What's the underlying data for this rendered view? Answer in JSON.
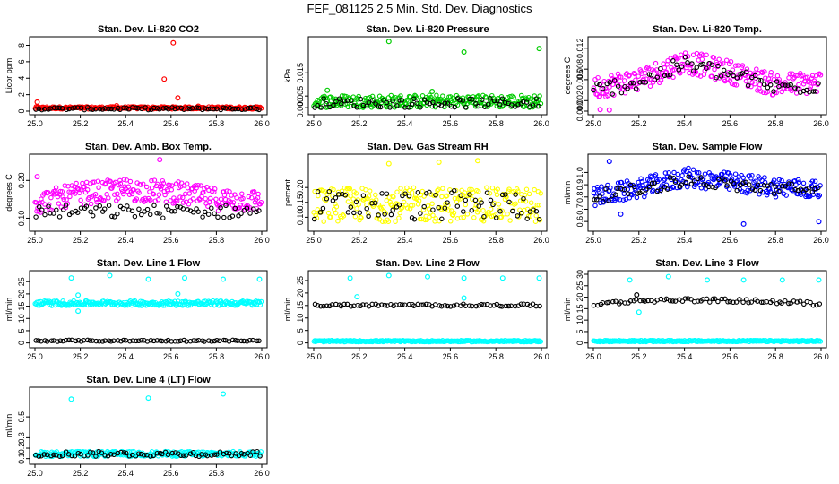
{
  "figure_title": "FEF_081125  2.5 Min. Std. Dev. Diagnostics",
  "chart_data": [
    {
      "type": "scatter",
      "title": "Stan. Dev. Li-820 CO2",
      "ylabel": "Licor ppm",
      "xlim": [
        25.0,
        26.0
      ],
      "ylim": [
        0,
        8.6
      ],
      "xticks": [
        "25.0",
        "25.2",
        "25.4",
        "25.6",
        "25.8",
        "26.0"
      ],
      "yticks": [
        0,
        2,
        4,
        6,
        8
      ],
      "ytick_labels": [
        "0",
        "2",
        "4",
        "6",
        "8"
      ],
      "series": [
        {
          "name": "red",
          "color": "#ff0000",
          "band": [
            0.25,
            0.55
          ],
          "outliers": [
            [
              25.01,
              1.1
            ],
            [
              25.57,
              3.9
            ],
            [
              25.61,
              8.3
            ],
            [
              25.63,
              1.6
            ],
            [
              25.36,
              0.65
            ],
            [
              25.72,
              0.6
            ]
          ]
        },
        {
          "name": "black",
          "color": "#000000",
          "band": [
            0.15,
            0.45
          ],
          "outliers": []
        }
      ]
    },
    {
      "type": "scatter",
      "title": "Stan. Dev. Li-820 Pressure",
      "ylabel": "kPa",
      "xlim": [
        25.0,
        26.0
      ],
      "ylim": [
        -0.0015,
        0.029
      ],
      "xticks": [
        "25.0",
        "25.2",
        "25.4",
        "25.6",
        "25.8",
        "26.0"
      ],
      "yticks": [
        0,
        0.005,
        0.015
      ],
      "ytick_labels": [
        "0.000",
        "0.005",
        "0.015"
      ],
      "series": [
        {
          "name": "green",
          "color": "#00cc00",
          "band": [
            0.0,
            0.0055
          ],
          "outliers": [
            [
              25.33,
              0.0285
            ],
            [
              25.66,
              0.024
            ],
            [
              25.99,
              0.0255
            ],
            [
              25.06,
              0.0075
            ],
            [
              25.52,
              0.007
            ]
          ]
        },
        {
          "name": "black",
          "color": "#000000",
          "band": [
            0.0,
            0.004
          ],
          "outliers": []
        }
      ]
    },
    {
      "type": "scatter",
      "title": "Stan. Dev. Li-820 Temp.",
      "ylabel": "degrees C",
      "xlim": [
        25.0,
        26.0
      ],
      "ylim": [
        0,
        0.0135
      ],
      "xticks": [
        "25.0",
        "25.2",
        "25.4",
        "25.6",
        "25.8",
        "26.0"
      ],
      "yticks": [
        0,
        0.002,
        0.006,
        0.008,
        0.012
      ],
      "ytick_labels": [
        "0.000",
        "0.002",
        "0.006",
        "0.008",
        "0.012"
      ],
      "series": [
        {
          "name": "magenta",
          "color": "#ff00ff",
          "trend": [
            [
              25.0,
              0.0045
            ],
            [
              25.2,
              0.006
            ],
            [
              25.4,
              0.0095
            ],
            [
              25.6,
              0.0075
            ],
            [
              25.8,
              0.005
            ],
            [
              26.0,
              0.0055
            ]
          ],
          "spread": 0.0022,
          "outliers": [
            [
              25.03,
              0.0003
            ],
            [
              25.07,
              0.0002
            ]
          ]
        },
        {
          "name": "black",
          "color": "#000000",
          "trend": [
            [
              25.0,
              0.004
            ],
            [
              25.2,
              0.0055
            ],
            [
              25.4,
              0.009
            ],
            [
              25.6,
              0.007
            ],
            [
              25.8,
              0.0045
            ],
            [
              26.0,
              0.005
            ]
          ],
          "spread": 0.0015,
          "outliers": []
        }
      ]
    },
    {
      "type": "scatter",
      "title": "Stan. Dev. Amb. Box Temp.",
      "ylabel": "degrees C",
      "xlim": [
        25.0,
        26.0
      ],
      "ylim": [
        0.075,
        0.26
      ],
      "xticks": [
        "25.0",
        "25.2",
        "25.4",
        "25.6",
        "25.8",
        "26.0"
      ],
      "yticks": [
        0.1,
        0.2
      ],
      "ytick_labels": [
        "0.10",
        "0.20"
      ],
      "series": [
        {
          "name": "magenta",
          "color": "#ff00ff",
          "trend": [
            [
              25.0,
              0.14
            ],
            [
              25.2,
              0.165
            ],
            [
              25.4,
              0.175
            ],
            [
              25.6,
              0.17
            ],
            [
              25.8,
              0.15
            ],
            [
              26.0,
              0.145
            ]
          ],
          "spread": 0.03,
          "outliers": [
            [
              25.01,
              0.21
            ],
            [
              25.55,
              0.255
            ]
          ]
        },
        {
          "name": "black",
          "color": "#000000",
          "band": [
            0.1,
            0.135
          ],
          "outliers": []
        }
      ]
    },
    {
      "type": "scatter",
      "title": "Stan. Dev. Gas Stream RH",
      "ylabel": "percent",
      "xlim": [
        25.0,
        26.0
      ],
      "ylim": [
        0.065,
        0.3
      ],
      "xticks": [
        "25.0",
        "25.2",
        "25.4",
        "25.6",
        "25.8",
        "26.0"
      ],
      "yticks": [
        0.1,
        0.15,
        0.2
      ],
      "ytick_labels": [
        "0.10",
        "0.15",
        "0.20"
      ],
      "series": [
        {
          "name": "yellow",
          "color": "#ffff00",
          "band": [
            0.085,
            0.2
          ],
          "outliers": [
            [
              25.55,
              0.285
            ],
            [
              25.72,
              0.29
            ],
            [
              25.33,
              0.28
            ]
          ]
        },
        {
          "name": "black",
          "color": "#000000",
          "band": [
            0.09,
            0.19
          ],
          "outliers": []
        }
      ]
    },
    {
      "type": "scatter",
      "title": "Stan. Dev. Sample Flow",
      "ylabel": "ml/min",
      "xlim": [
        25.0,
        26.0
      ],
      "ylim": [
        0.55,
        1.12
      ],
      "xticks": [
        "25.0",
        "25.2",
        "25.4",
        "25.6",
        "25.8",
        "26.0"
      ],
      "yticks": [
        0.6,
        0.7,
        0.8,
        0.9,
        1.0
      ],
      "ytick_labels": [
        "0.6",
        "0.7",
        "0.8",
        "0.9",
        "1.0"
      ],
      "series": [
        {
          "name": "blue",
          "color": "#0000ff",
          "trend": [
            [
              25.0,
              0.8
            ],
            [
              25.2,
              0.87
            ],
            [
              25.4,
              0.96
            ],
            [
              25.6,
              0.92
            ],
            [
              25.8,
              0.88
            ],
            [
              26.0,
              0.86
            ]
          ],
          "spread": 0.08,
          "outliers": [
            [
              25.07,
              1.09
            ],
            [
              25.99,
              0.6
            ],
            [
              25.12,
              0.66
            ],
            [
              25.66,
              0.58
            ]
          ]
        },
        {
          "name": "black",
          "color": "#000000",
          "trend": [
            [
              25.0,
              0.8
            ],
            [
              25.2,
              0.86
            ],
            [
              25.4,
              0.94
            ],
            [
              25.6,
              0.9
            ],
            [
              25.8,
              0.87
            ],
            [
              26.0,
              0.85
            ]
          ],
          "spread": 0.05,
          "outliers": []
        }
      ]
    },
    {
      "type": "scatter",
      "title": "Stan. Dev. Line 1 Flow",
      "ylabel": "ml/min",
      "xlim": [
        25.0,
        26.0
      ],
      "ylim": [
        -0.5,
        28
      ],
      "xticks": [
        "25.0",
        "25.2",
        "25.4",
        "25.6",
        "25.8",
        "26.0"
      ],
      "yticks": [
        0,
        5,
        10,
        15,
        20,
        25
      ],
      "ytick_labels": [
        "0",
        "5",
        "10",
        "15",
        "20",
        "25"
      ],
      "series": [
        {
          "name": "cyan",
          "color": "#00ffff",
          "band": [
            15.2,
            17.2
          ],
          "outliers": [
            [
              25.16,
              26.5
            ],
            [
              25.33,
              27.5
            ],
            [
              25.5,
              26
            ],
            [
              25.66,
              26.5
            ],
            [
              25.83,
              26
            ],
            [
              25.99,
              26
            ],
            [
              25.19,
              19.5
            ],
            [
              25.19,
              13
            ],
            [
              25.63,
              20
            ]
          ]
        },
        {
          "name": "black",
          "color": "#000000",
          "band": [
            0.6,
            1.2
          ],
          "outliers": []
        }
      ]
    },
    {
      "type": "scatter",
      "title": "Stan. Dev. Line 2 Flow",
      "ylabel": "ml/min",
      "xlim": [
        25.0,
        26.0
      ],
      "ylim": [
        -0.5,
        27.5
      ],
      "xticks": [
        "25.0",
        "25.2",
        "25.4",
        "25.6",
        "25.8",
        "26.0"
      ],
      "yticks": [
        0,
        5,
        10,
        15,
        20,
        25
      ],
      "ytick_labels": [
        "0",
        "5",
        "10",
        "15",
        "20",
        "25"
      ],
      "series": [
        {
          "name": "cyan",
          "color": "#00ffff",
          "band": [
            0.4,
            1.0
          ],
          "outliers": [
            [
              25.16,
              26
            ],
            [
              25.33,
              27
            ],
            [
              25.5,
              26.5
            ],
            [
              25.66,
              26
            ],
            [
              25.83,
              26
            ],
            [
              25.99,
              26
            ],
            [
              25.19,
              18.5
            ],
            [
              25.66,
              18
            ]
          ]
        },
        {
          "name": "black",
          "color": "#000000",
          "band": [
            14.6,
            15.6
          ],
          "outliers": []
        }
      ]
    },
    {
      "type": "scatter",
      "title": "Stan. Dev. Line 3 Flow",
      "ylabel": "ml/min",
      "xlim": [
        25.0,
        26.0
      ],
      "ylim": [
        -0.5,
        30
      ],
      "xticks": [
        "25.0",
        "25.2",
        "25.4",
        "25.6",
        "25.8",
        "26.0"
      ],
      "yticks": [
        0,
        5,
        10,
        15,
        20,
        25,
        30
      ],
      "ytick_labels": [
        "0",
        "5",
        "10",
        "15",
        "20",
        "25",
        "30"
      ],
      "series": [
        {
          "name": "cyan",
          "color": "#00ffff",
          "band": [
            0.5,
            1.2
          ],
          "outliers": [
            [
              25.16,
              27.5
            ],
            [
              25.33,
              29
            ],
            [
              25.5,
              27.5
            ],
            [
              25.66,
              27.5
            ],
            [
              25.83,
              27.5
            ],
            [
              25.99,
              27.5
            ],
            [
              25.2,
              13.5
            ]
          ]
        },
        {
          "name": "black",
          "color": "#000000",
          "trend": [
            [
              25.0,
              17
            ],
            [
              25.2,
              18.5
            ],
            [
              25.4,
              18.8
            ],
            [
              25.6,
              18.5
            ],
            [
              25.8,
              18
            ],
            [
              26.0,
              17
            ]
          ],
          "spread": 0.8,
          "outliers": [
            [
              25.19,
              21
            ]
          ]
        }
      ]
    },
    {
      "type": "scatter",
      "title": "Stan. Dev. Line 4 (LT) Flow",
      "ylabel": "ml/min",
      "xlim": [
        25.0,
        26.0
      ],
      "ylim": [
        0.08,
        0.75
      ],
      "xticks": [
        "25.0",
        "25.2",
        "25.4",
        "25.6",
        "25.8",
        "26.0"
      ],
      "yticks": [
        0.1,
        0.2,
        0.3,
        0.5
      ],
      "ytick_labels": [
        "0.1",
        "0.2",
        "0.3",
        "0.5"
      ],
      "series": [
        {
          "name": "cyan",
          "color": "#00ffff",
          "band": [
            0.12,
            0.17
          ],
          "outliers": [
            [
              25.16,
              0.67
            ],
            [
              25.5,
              0.68
            ],
            [
              25.83,
              0.72
            ]
          ]
        },
        {
          "name": "black",
          "color": "#000000",
          "band": [
            0.12,
            0.17
          ],
          "outliers": []
        }
      ]
    }
  ]
}
